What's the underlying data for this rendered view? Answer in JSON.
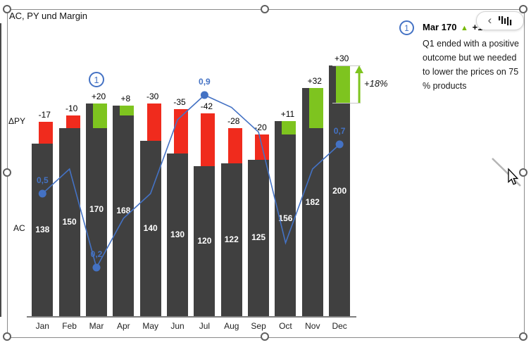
{
  "title": "AC, PY und Margin",
  "axis_labels": {
    "delta_py": "ΔPY",
    "ac": "AC"
  },
  "chart_data": {
    "type": "bar",
    "subtype": "variance-column-with-margin-line",
    "categories": [
      "Jan",
      "Feb",
      "Mar",
      "Apr",
      "May",
      "Jun",
      "Jul",
      "Aug",
      "Sep",
      "Oct",
      "Nov",
      "Dec"
    ],
    "series": [
      {
        "name": "AC",
        "type": "bar",
        "color": "#404040",
        "values": [
          138,
          150,
          170,
          168,
          140,
          130,
          120,
          122,
          125,
          156,
          182,
          200
        ]
      },
      {
        "name": "ΔPY",
        "type": "variance-bar",
        "color_negative": "#F02B1D",
        "color_positive": "#7EC41F",
        "values": [
          -17,
          -10,
          20,
          8,
          -30,
          -35,
          -42,
          -28,
          -20,
          11,
          32,
          30
        ],
        "labels": [
          "-17",
          "-10",
          "+20",
          "+8",
          "-30",
          "-35",
          "-42",
          "-28",
          "-20",
          "+11",
          "+32",
          "+30"
        ]
      },
      {
        "name": "Margin",
        "type": "line",
        "color": "#4472C4",
        "values": [
          0.5,
          0.6,
          0.2,
          0.4,
          0.5,
          0.8,
          0.9,
          0.85,
          0.75,
          0.3,
          0.6,
          0.7
        ],
        "point_labels": {
          "0": "0,5",
          "2": "0,2",
          "6": "0,9",
          "11": "0,7"
        }
      }
    ],
    "legend_position": "none",
    "grid": false,
    "growth_arrow": {
      "label": "+18%",
      "color": "#7EC41F"
    },
    "annotation_marker": {
      "index": "1",
      "month": "Mar"
    }
  },
  "comment_panel": {
    "marker": "1",
    "header": {
      "label": "Mar 170",
      "arrow": "▲",
      "change": "+13%"
    },
    "body": "Q1 ended with a positive outcome but we needed to lower the prices on 75 % products"
  },
  "toolbar": {
    "collapse_icon": "‹"
  }
}
